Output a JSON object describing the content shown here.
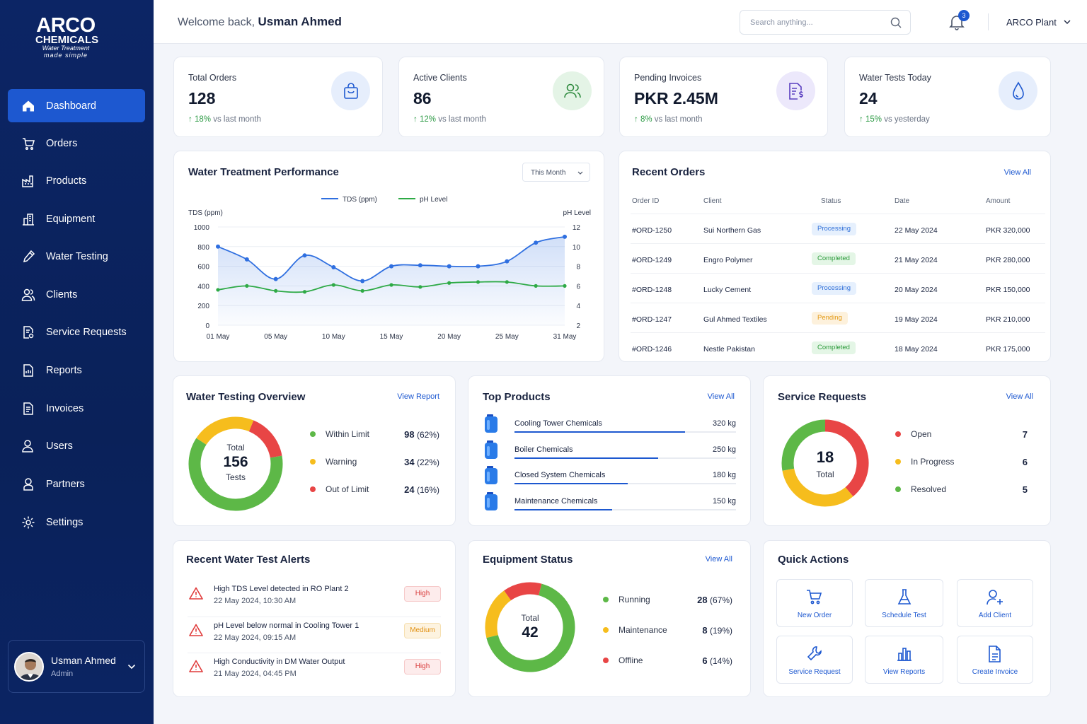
{
  "brand": {
    "line1": "ARCO",
    "line2": "CHEMICALS",
    "line3": "Water Treatment",
    "line4": "made simple"
  },
  "sidebar": {
    "items": [
      {
        "label": "Dashboard",
        "icon": "home-icon"
      },
      {
        "label": "Orders",
        "icon": "cart-icon"
      },
      {
        "label": "Products",
        "icon": "factory-icon"
      },
      {
        "label": "Equipment",
        "icon": "building-icon"
      },
      {
        "label": "Water Testing",
        "icon": "pipette-icon"
      },
      {
        "label": "Clients",
        "icon": "users-icon"
      },
      {
        "label": "Service Requests",
        "icon": "document-gear-icon"
      },
      {
        "label": "Reports",
        "icon": "report-icon"
      },
      {
        "label": "Invoices",
        "icon": "invoice-icon"
      },
      {
        "label": "Users",
        "icon": "user-group-icon"
      },
      {
        "label": "Partners",
        "icon": "partner-icon"
      },
      {
        "label": "Settings",
        "icon": "gear-icon"
      }
    ],
    "user": {
      "name": "Usman Ahmed",
      "role": "Admin"
    }
  },
  "header": {
    "welcome": "Welcome back,",
    "user_name": "Usman Ahmed",
    "search_placeholder": "Search anything...",
    "notifications": "3",
    "plant": "ARCO Plant"
  },
  "stats": [
    {
      "label": "Total Orders",
      "value": "128",
      "change": "18%",
      "change_text": "vs last month",
      "icon": "shopping-bag-icon"
    },
    {
      "label": "Active Clients",
      "value": "86",
      "change": "12%",
      "change_text": "vs last month",
      "icon": "users-icon"
    },
    {
      "label": "Pending Invoices",
      "value": "PKR 2.45M",
      "change": "8%",
      "change_text": "vs last month",
      "icon": "invoice-dollar-icon"
    },
    {
      "label": "Water Tests Today",
      "value": "24",
      "change": "15%",
      "change_text": "vs yesterday",
      "icon": "water-drop-icon"
    }
  ],
  "performance": {
    "title": "Water Treatment Performance",
    "period": "This Month",
    "legend_tds": "TDS (ppm)",
    "legend_ph": "pH Level",
    "y_left_label": "TDS (ppm)",
    "y_right_label": "pH Level"
  },
  "chart_data": {
    "type": "line",
    "x": [
      "01 May",
      "03 May",
      "05 May",
      "08 May",
      "10 May",
      "13 May",
      "15 May",
      "18 May",
      "20 May",
      "23 May",
      "25 May",
      "28 May",
      "31 May"
    ],
    "x_ticks": [
      "01 May",
      "05 May",
      "10 May",
      "15 May",
      "20 May",
      "25 May",
      "31 May"
    ],
    "series": [
      {
        "name": "TDS (ppm)",
        "axis": "left",
        "color": "#2f6fe0",
        "values": [
          800,
          670,
          470,
          710,
          590,
          450,
          600,
          610,
          600,
          600,
          650,
          840,
          900
        ]
      },
      {
        "name": "pH Level",
        "axis": "right",
        "color": "#2eaa46",
        "values": [
          5.6,
          6.0,
          5.5,
          5.4,
          6.1,
          5.5,
          6.1,
          5.9,
          6.3,
          6.4,
          6.4,
          6.0,
          6.0
        ]
      }
    ],
    "y_left": {
      "min": 0,
      "max": 1000,
      "ticks": [
        0,
        200,
        400,
        600,
        800,
        1000
      ]
    },
    "y_right": {
      "min": 2,
      "max": 12,
      "ticks": [
        2,
        4,
        6,
        8,
        10,
        12
      ]
    },
    "grid": true,
    "legend": "top-center"
  },
  "recent_orders": {
    "title": "Recent Orders",
    "view_all": "View All",
    "columns": [
      "Order ID",
      "Client",
      "Status",
      "Date",
      "Amount"
    ],
    "rows": [
      {
        "id": "#ORD-1250",
        "client": "Sui Northern Gas",
        "status": "Processing",
        "date": "22 May 2024",
        "amount": "PKR 320,000"
      },
      {
        "id": "#ORD-1249",
        "client": "Engro Polymer",
        "status": "Completed",
        "date": "21 May 2024",
        "amount": "PKR 280,000"
      },
      {
        "id": "#ORD-1248",
        "client": "Lucky Cement",
        "status": "Processing",
        "date": "20 May 2024",
        "amount": "PKR 150,000"
      },
      {
        "id": "#ORD-1247",
        "client": "Gul Ahmed Textiles",
        "status": "Pending",
        "date": "19 May 2024",
        "amount": "PKR 210,000"
      },
      {
        "id": "#ORD-1246",
        "client": "Nestle Pakistan",
        "status": "Completed",
        "date": "18 May 2024",
        "amount": "PKR 175,000"
      }
    ]
  },
  "testing_overview": {
    "title": "Water Testing Overview",
    "view": "View Report",
    "center_top": "Total",
    "total": "156",
    "center_bottom": "Tests",
    "items": [
      {
        "label": "Within Limit",
        "value": "98",
        "pct": "(62%)",
        "color": "#5db847",
        "share": 0.62
      },
      {
        "label": "Warning",
        "value": "34",
        "pct": "(22%)",
        "color": "#f6bd1d",
        "share": 0.22
      },
      {
        "label": "Out of Limit",
        "value": "24",
        "pct": "(16%)",
        "color": "#e84545",
        "share": 0.16
      }
    ]
  },
  "top_products": {
    "title": "Top Products",
    "view_all": "View All",
    "items": [
      {
        "name": "Cooling Tower Chemicals",
        "qty": "320 kg",
        "share": 0.77
      },
      {
        "name": "Boiler Chemicals",
        "qty": "250 kg",
        "share": 0.65
      },
      {
        "name": "Closed System Chemicals",
        "qty": "180 kg",
        "share": 0.51
      },
      {
        "name": "Maintenance Chemicals",
        "qty": "150 kg",
        "share": 0.44
      }
    ]
  },
  "service_requests": {
    "title": "Service Requests",
    "view_all": "View All",
    "total": "18",
    "center_bottom": "Total",
    "items": [
      {
        "label": "Open",
        "value": "7",
        "color": "#e84545",
        "share": 0.389
      },
      {
        "label": "In Progress",
        "value": "6",
        "color": "#f6bd1d",
        "share": 0.333
      },
      {
        "label": "Resolved",
        "value": "5",
        "color": "#5db847",
        "share": 0.278
      }
    ]
  },
  "alerts": {
    "title": "Recent Water Test Alerts",
    "items": [
      {
        "text": "High TDS Level detected in RO Plant 2",
        "date": "22 May 2024, 10:30 AM",
        "severity": "High"
      },
      {
        "text": "pH Level below normal in Cooling Tower 1",
        "date": "22 May 2024, 09:15 AM",
        "severity": "Medium"
      },
      {
        "text": "High Conductivity in DM Water Output",
        "date": "21 May 2024, 04:45 PM",
        "severity": "High"
      }
    ]
  },
  "equipment": {
    "title": "Equipment Status",
    "view_all": "View All",
    "center_top": "Total",
    "total": "42",
    "items": [
      {
        "label": "Running",
        "value": "28",
        "pct": "(67%)",
        "color": "#5db847",
        "share": 0.67
      },
      {
        "label": "Maintenance",
        "value": "8",
        "pct": "(19%)",
        "color": "#f6bd1d",
        "share": 0.19
      },
      {
        "label": "Offline",
        "value": "6",
        "pct": "(14%)",
        "color": "#e84545",
        "share": 0.14
      }
    ]
  },
  "quick_actions": {
    "title": "Quick Actions",
    "items": [
      {
        "label": "New Order",
        "icon": "cart-icon"
      },
      {
        "label": "Schedule Test",
        "icon": "flask-icon"
      },
      {
        "label": "Add Client",
        "icon": "add-user-icon"
      },
      {
        "label": "Service Request",
        "icon": "wrench-icon"
      },
      {
        "label": "View Reports",
        "icon": "bar-chart-icon"
      },
      {
        "label": "Create Invoice",
        "icon": "document-icon"
      }
    ]
  }
}
